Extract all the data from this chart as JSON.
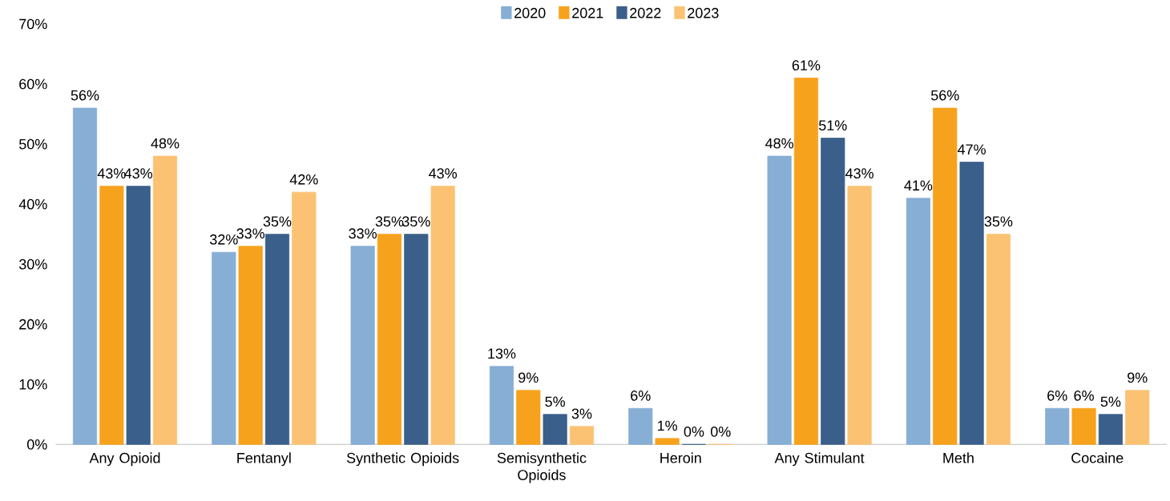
{
  "chart_data": {
    "type": "bar",
    "categories": [
      "Any Opioid",
      "Fentanyl",
      "Synthetic Opioids",
      "Semisynthetic Opioids",
      "Heroin",
      "Any Stimulant",
      "Meth",
      "Cocaine"
    ],
    "series": [
      {
        "name": "2020",
        "color": "#87aed4",
        "values": [
          56,
          32,
          33,
          13,
          6,
          48,
          41,
          6
        ],
        "value_labels": [
          "56%",
          "32%",
          "33%",
          "13%",
          "6%",
          "48%",
          "41%",
          "6%"
        ]
      },
      {
        "name": "2021",
        "color": "#f7a21d",
        "values": [
          43,
          33,
          35,
          9,
          1,
          61,
          56,
          6
        ],
        "value_labels": [
          "43%",
          "33%",
          "35%",
          "9%",
          "1%",
          "61%",
          "56%",
          "6%"
        ]
      },
      {
        "name": "2022",
        "color": "#3a5f8a",
        "values": [
          43,
          35,
          35,
          5,
          0,
          51,
          47,
          5
        ],
        "value_labels": [
          "43%",
          "35%",
          "35%",
          "5%",
          "0%",
          "51%",
          "47%",
          "5%"
        ]
      },
      {
        "name": "2023",
        "color": "#fbc273",
        "values": [
          48,
          42,
          43,
          3,
          0,
          43,
          35,
          9
        ],
        "value_labels": [
          "48%",
          "42%",
          "43%",
          "3%",
          "0%",
          "43%",
          "35%",
          "9%"
        ]
      }
    ],
    "ylim": [
      0,
      70
    ],
    "yticks": [
      {
        "value": 0,
        "label": "0%"
      },
      {
        "value": 10,
        "label": "10%"
      },
      {
        "value": 20,
        "label": "20%"
      },
      {
        "value": 30,
        "label": "30%"
      },
      {
        "value": 40,
        "label": "40%"
      },
      {
        "value": 50,
        "label": "50%"
      },
      {
        "value": 60,
        "label": "60%"
      },
      {
        "value": 70,
        "label": "70%"
      }
    ],
    "grid": false,
    "legend": "top"
  }
}
